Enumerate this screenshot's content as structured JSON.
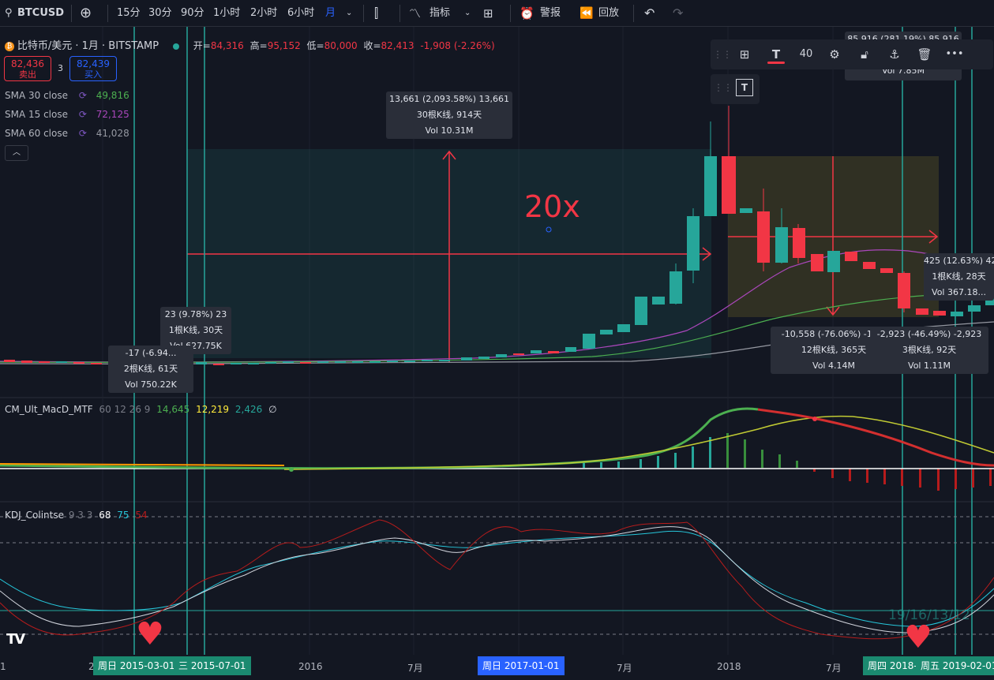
{
  "toolbar": {
    "symbol": "BTCUSD",
    "intervals": [
      "15分",
      "30分",
      "90分",
      "1小时",
      "2小时",
      "6小时",
      "月"
    ],
    "indicators_label": "指标",
    "alert_label": "警报",
    "replay_label": "回放"
  },
  "legend": {
    "title": "比特币/美元 · 1月 · BITSTAMP",
    "open_label": "开=",
    "open": "84,316",
    "high_label": "高=",
    "high": "95,152",
    "low_label": "低=",
    "low": "80,000",
    "close_label": "收=",
    "close": "82,413",
    "change": "-1,908 (-2.26%)",
    "sell_price": "82,436",
    "sell_label": "卖出",
    "spread": "3",
    "buy_price": "82,439",
    "buy_label": "买入",
    "sma": [
      {
        "name": "SMA 30 close",
        "value": "49,816",
        "color": "#4caf50"
      },
      {
        "name": "SMA 15 close",
        "value": "72,125",
        "color": "#ab47bc"
      },
      {
        "name": "SMA 60 close",
        "value": "41,028",
        "color": "#9598a1"
      }
    ]
  },
  "drawing_toolbar": {
    "font_size": "40"
  },
  "annotations": {
    "big_text": "20x",
    "callout_main": [
      "13,661 (2,093.58%) 13,661",
      "30根K线, 914天",
      "Vol 10.31M"
    ],
    "callout_left1": [
      "23 (9.78%) 23",
      "1根K线, 30天",
      "Vol 627.75K"
    ],
    "callout_left2": [
      "-17 (-6.94...",
      "2根K线, 61天",
      "Vol 750.22K"
    ],
    "callout_mid": [
      "-10,558 (-76.06%) -10...",
      "12根K线, 365天",
      "Vol 4.14M"
    ],
    "callout_right1": [
      "-2,923 (-46.49%) -2,923",
      "3根K线, 92天",
      "Vol 1.11M"
    ],
    "callout_right2": [
      "425 (12.63%) 42...",
      "1根K线, 28天",
      "Vol 367.18..."
    ],
    "callout_top": [
      "85,916 (281.19%) 85,916",
      "Vol 7.85M"
    ]
  },
  "macd": {
    "name": "CM_Ult_MacD_MTF",
    "params": "60 12 26 9",
    "v1": "14,645",
    "v2": "12,219",
    "v3": "2,426",
    "v4": "∅"
  },
  "kdj": {
    "name": "KDJ_Colintse",
    "params": "9 3 3",
    "k": "68",
    "d": "75",
    "j": "54",
    "watermark": "19/16/13/12"
  },
  "xaxis": {
    "labels": [
      "2",
      "2016",
      "7月",
      "7月",
      "2018",
      "7月"
    ],
    "highlight1": "周日 2015-03-01",
    "highlight2": "三 2015-07-01",
    "highlight3": "周日 2017-01-01",
    "highlight4": "周四 2018-",
    "highlight5": "周五 2019-02-01"
  },
  "colors": {
    "up": "#26a69a",
    "down": "#f23645",
    "accent": "#2962ff",
    "background": "#131722"
  }
}
